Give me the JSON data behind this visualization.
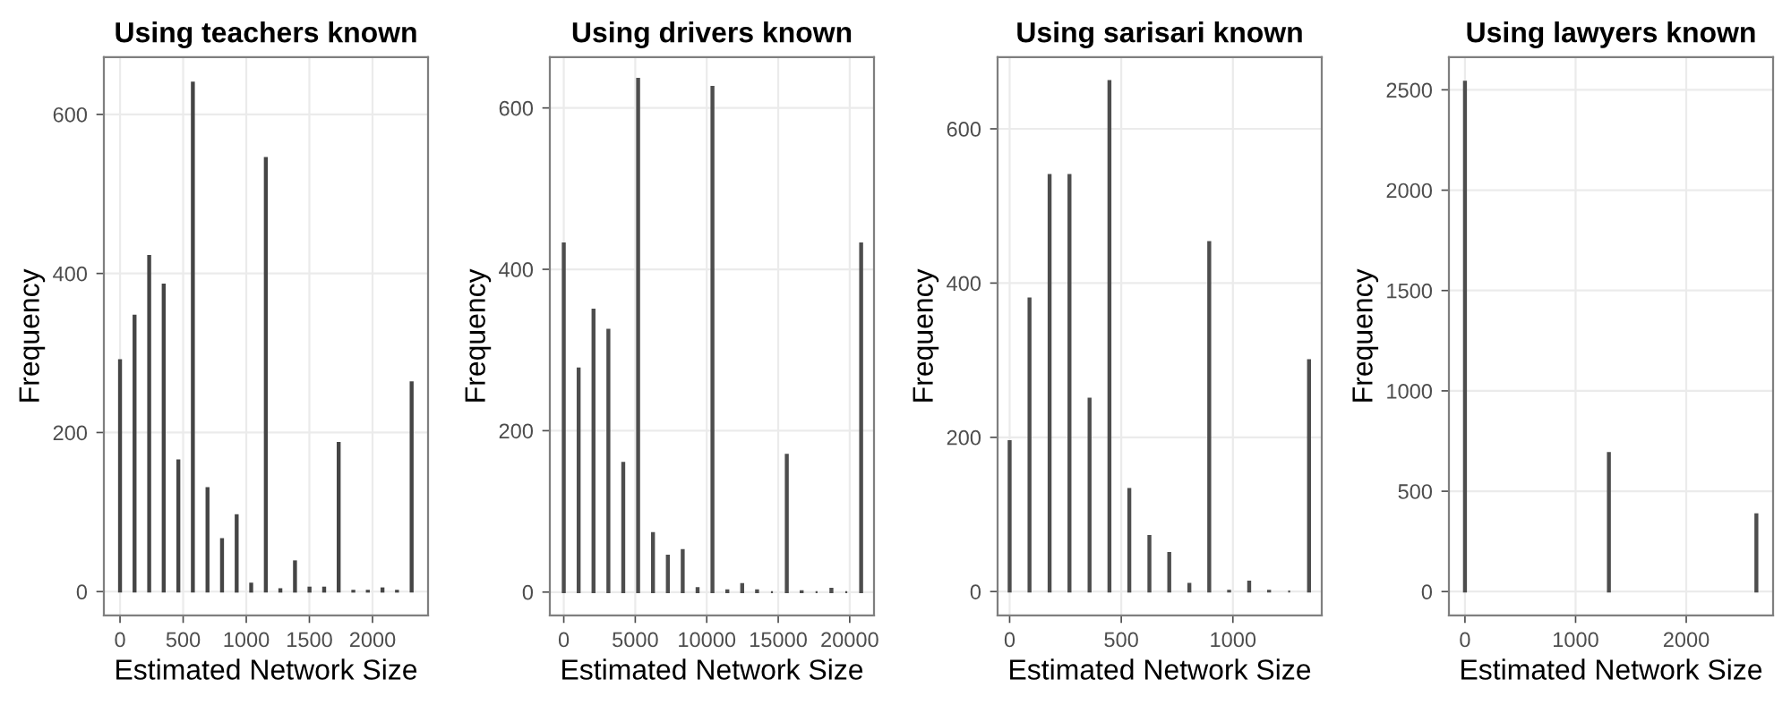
{
  "chart_data": [
    {
      "type": "bar",
      "title": "Using teachers known",
      "xlabel": "Estimated Network Size",
      "ylabel": "Frequency",
      "color": "#454545",
      "grid": true,
      "x": [
        0,
        115,
        231,
        346,
        462,
        577,
        693,
        808,
        924,
        1039,
        1155,
        1270,
        1386,
        1501,
        1617,
        1732,
        1848,
        1963,
        2079,
        2194,
        2310
      ],
      "values": [
        291,
        347,
        422,
        386,
        165,
        640,
        130,
        66,
        96,
        10,
        545,
        3,
        38,
        5,
        5,
        187,
        1,
        1,
        4,
        1,
        263
      ],
      "xlim": [
        -128,
        2440
      ],
      "xticks": [
        0,
        500,
        1000,
        1500,
        2000
      ],
      "ylim": [
        -30,
        672
      ],
      "yticks": [
        0,
        200,
        400,
        600
      ]
    },
    {
      "type": "bar",
      "title": "Using drivers known",
      "xlabel": "Estimated Network Size",
      "ylabel": "Frequency",
      "color": "#4d4d4d",
      "grid": true,
      "x": [
        0,
        1040,
        2080,
        3120,
        4160,
        5200,
        6240,
        7280,
        8320,
        9360,
        10400,
        11440,
        12480,
        13520,
        14560,
        15600,
        16640,
        17680,
        18720,
        19760,
        20800
      ],
      "values": [
        432,
        277,
        350,
        325,
        160,
        636,
        73,
        45,
        52,
        5,
        626,
        2,
        10,
        2,
        0,
        170,
        1,
        0,
        4,
        0,
        432
      ],
      "xlim": [
        -975,
        21700
      ],
      "xticks": [
        0,
        5000,
        10000,
        15000,
        20000
      ],
      "ylim": [
        -29,
        663
      ],
      "yticks": [
        0,
        200,
        400,
        600
      ]
    },
    {
      "type": "bar",
      "title": "Using sarisari known",
      "xlabel": "Estimated Network Size",
      "ylabel": "Frequency",
      "color": "#4d4d4d",
      "grid": true,
      "x": [
        0,
        89,
        179,
        268,
        358,
        447,
        536,
        626,
        715,
        805,
        894,
        983,
        1073,
        1162,
        1252,
        1341
      ],
      "values": [
        195,
        380,
        540,
        540,
        250,
        662,
        133,
        72,
        50,
        10,
        453,
        1,
        13,
        1,
        0,
        300
      ],
      "xlim": [
        -54,
        1398
      ],
      "xticks": [
        0,
        500,
        1000
      ],
      "ylim": [
        -31,
        693
      ],
      "yticks": [
        0,
        200,
        400,
        600
      ]
    },
    {
      "type": "bar",
      "title": "Using lawyers known",
      "xlabel": "Estimated Network Size",
      "ylabel": "Frequency",
      "color": "#4d4d4d",
      "grid": true,
      "x": [
        0,
        1301,
        2634
      ],
      "values": [
        2540,
        690,
        385
      ],
      "xlim": [
        -145,
        2785
      ],
      "xticks": [
        0,
        1000,
        2000
      ],
      "ylim": [
        -119,
        2663
      ],
      "yticks": [
        0,
        500,
        1000,
        1500,
        2000,
        2500
      ]
    }
  ]
}
